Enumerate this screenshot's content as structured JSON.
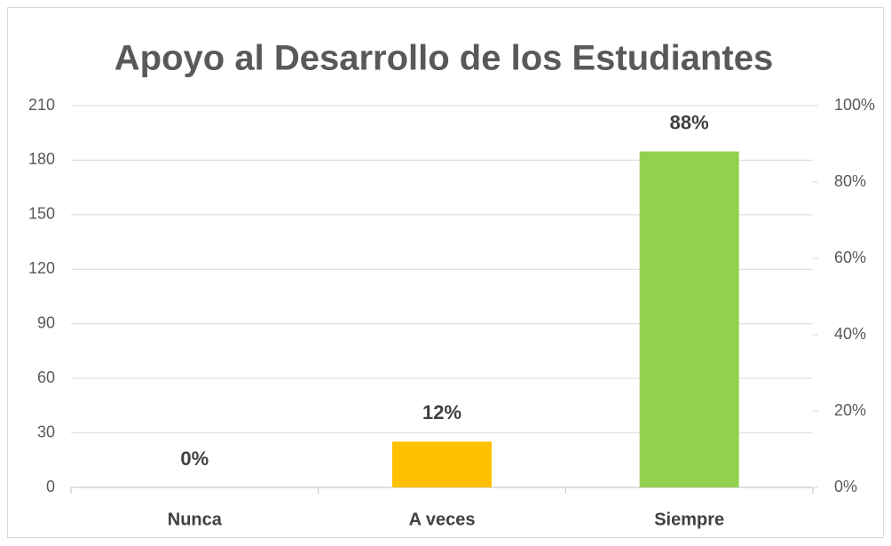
{
  "chart_data": {
    "type": "bar",
    "title": "Apoyo al Desarrollo de los Estudiantes",
    "categories": [
      "Nunca",
      "A veces",
      "Siempre"
    ],
    "series": [
      {
        "values": [
          0,
          12,
          88
        ],
        "value_labels": [
          "0%",
          "12%",
          "88%"
        ],
        "colors": [
          "#4472c4",
          "#ffc000",
          "#92d050"
        ],
        "axis": "y2"
      }
    ],
    "ylim": [
      0,
      210
    ],
    "yticks": [
      0,
      30,
      60,
      90,
      120,
      150,
      180,
      210
    ],
    "y2lim": [
      0,
      100
    ],
    "y2ticks": [
      {
        "value": 0,
        "label": "0%"
      },
      {
        "value": 20,
        "label": "20%"
      },
      {
        "value": 40,
        "label": "40%"
      },
      {
        "value": 60,
        "label": "60%"
      },
      {
        "value": 80,
        "label": "80%"
      },
      {
        "value": 100,
        "label": "100%"
      }
    ],
    "grid": true
  }
}
